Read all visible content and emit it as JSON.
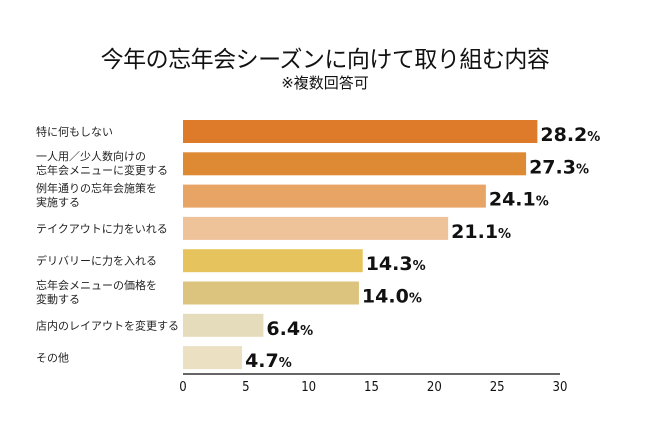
{
  "chart_data": {
    "type": "bar",
    "orientation": "horizontal",
    "title": "今年の忘年会シーズンに向けて取り組む内容",
    "subtitle": "※複数回答可",
    "xlabel": "",
    "ylabel": "",
    "xlim": [
      0,
      30
    ],
    "xticks": [
      "0",
      "5",
      "10",
      "15",
      "20",
      "25",
      "30"
    ],
    "grid": false,
    "unit": "%",
    "categories": [
      [
        "特に何もしない"
      ],
      [
        "一人用／少人数向けの",
        "忘年会メニューに変更する"
      ],
      [
        "例年通りの忘年会施策を",
        "実施する"
      ],
      [
        "テイクアウトに力をいれる"
      ],
      [
        "デリバリーに力を入れる"
      ],
      [
        "忘年会メニューの価格を",
        "変動する"
      ],
      [
        "店内のレイアウトを変更する"
      ],
      [
        "その他"
      ]
    ],
    "values": [
      28.2,
      27.3,
      24.1,
      21.1,
      14.3,
      14.0,
      6.4,
      4.7
    ],
    "value_labels": [
      "28.2",
      "27.3",
      "24.1",
      "21.1",
      "14.3",
      "14.0",
      "6.4",
      "4.7"
    ],
    "colors": [
      "#dd7b2a",
      "#de8a35",
      "#e8a465",
      "#eec39a",
      "#e6c35c",
      "#dcc47e",
      "#e4dcbb",
      "#ebe0c2"
    ]
  }
}
